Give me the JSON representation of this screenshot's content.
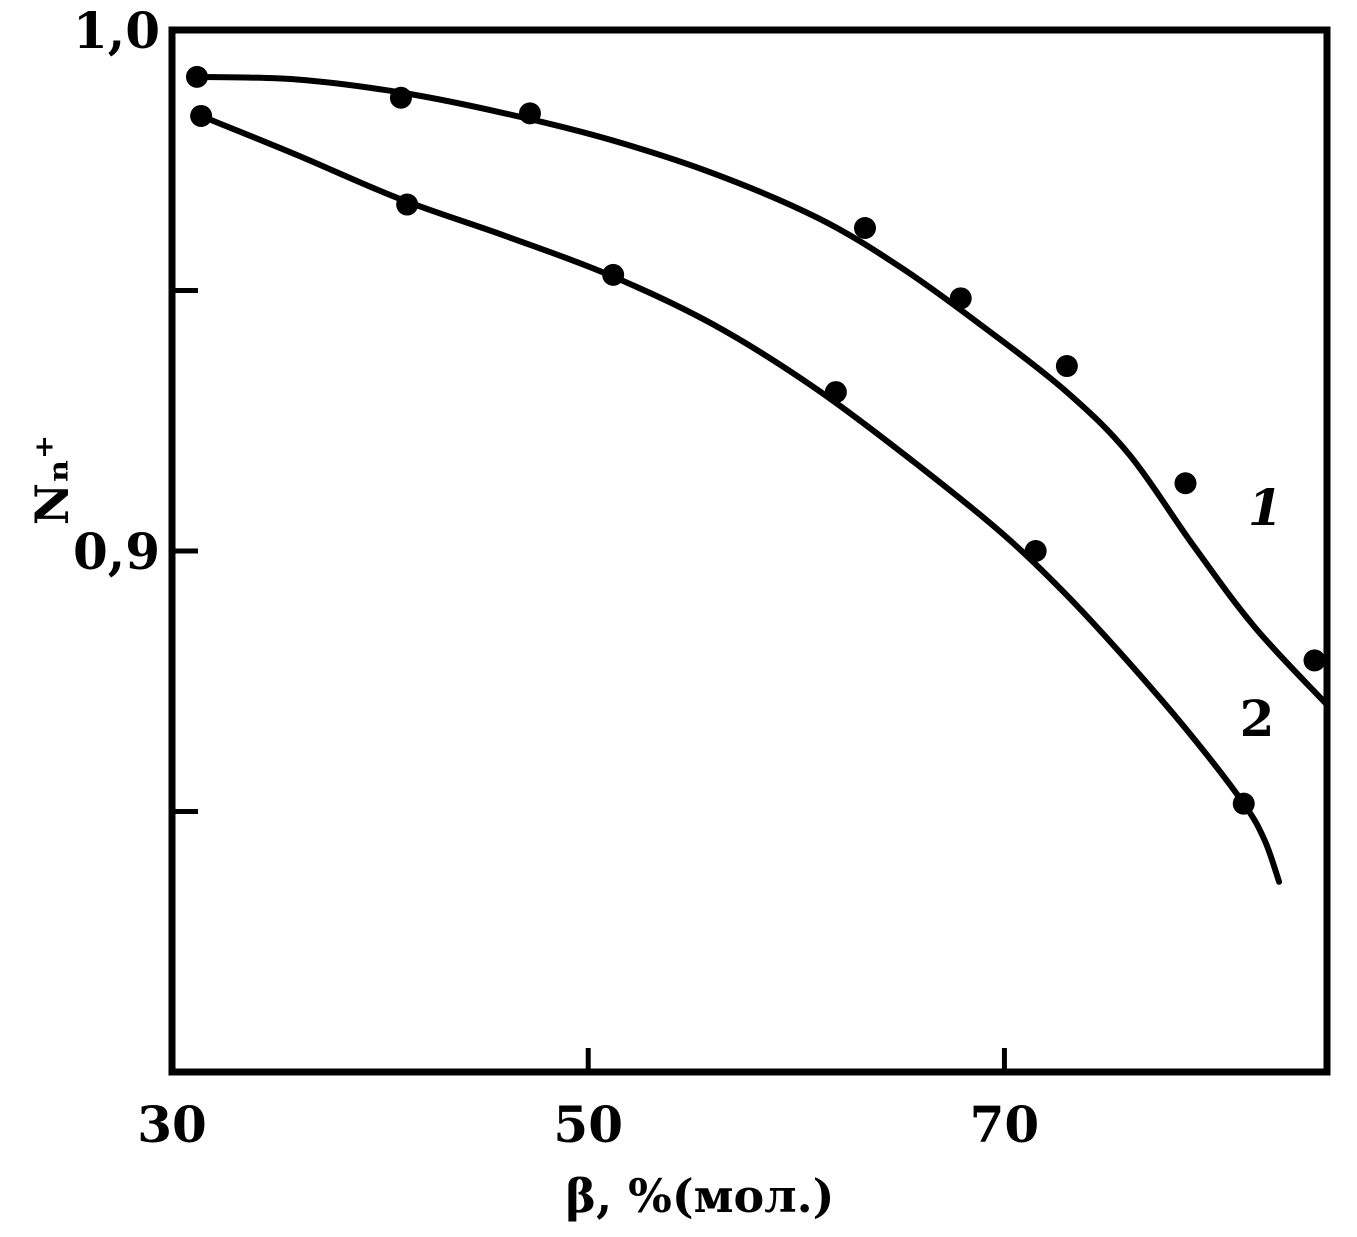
{
  "chart_data": {
    "type": "line",
    "title": "",
    "xlabel": "β, %(мол.)",
    "ylabel": "Nₙ⁺",
    "xlim": [
      30,
      85.5
    ],
    "ylim": [
      0.8,
      1.0
    ],
    "x_ticks": [
      {
        "value": 30,
        "label": "30"
      },
      {
        "value": 50,
        "label": "50"
      },
      {
        "value": 70,
        "label": "70"
      }
    ],
    "y_ticks": [
      {
        "value": 1.0,
        "label": "1,0"
      },
      {
        "value": 0.95,
        "label": ""
      },
      {
        "value": 0.9,
        "label": "0,9"
      },
      {
        "value": 0.85,
        "label": ""
      }
    ],
    "grid": false,
    "series": [
      {
        "name": "",
        "label": "1",
        "points": [
          [
            31.2,
            0.991
          ],
          [
            41.0,
            0.987
          ],
          [
            47.2,
            0.984
          ],
          [
            63.3,
            0.962
          ],
          [
            67.9,
            0.9485
          ],
          [
            73.0,
            0.9355
          ],
          [
            78.7,
            0.913
          ],
          [
            84.9,
            0.879
          ]
        ],
        "curve": [
          [
            31.2,
            0.991
          ],
          [
            36,
            0.9905
          ],
          [
            41,
            0.988
          ],
          [
            46,
            0.984
          ],
          [
            51,
            0.979
          ],
          [
            56,
            0.9725
          ],
          [
            61,
            0.964
          ],
          [
            65,
            0.9545
          ],
          [
            69,
            0.943
          ],
          [
            73,
            0.9305
          ],
          [
            76,
            0.9185
          ],
          [
            79,
            0.9015
          ],
          [
            82,
            0.8855
          ],
          [
            85.5,
            0.8705
          ]
        ],
        "label_pos": [
          81.7,
          0.905
        ]
      },
      {
        "name": "",
        "label": "2",
        "points": [
          [
            31.4,
            0.9835
          ],
          [
            41.3,
            0.9665
          ],
          [
            51.2,
            0.953
          ],
          [
            61.9,
            0.9305
          ],
          [
            71.5,
            0.9
          ],
          [
            81.5,
            0.8515
          ]
        ],
        "curve": [
          [
            31.4,
            0.9835
          ],
          [
            36,
            0.976
          ],
          [
            41,
            0.9675
          ],
          [
            46,
            0.9605
          ],
          [
            51,
            0.953
          ],
          [
            56,
            0.9435
          ],
          [
            61,
            0.931
          ],
          [
            66,
            0.916
          ],
          [
            70,
            0.903
          ],
          [
            73,
            0.8915
          ],
          [
            76,
            0.8785
          ],
          [
            79,
            0.8645
          ],
          [
            81.5,
            0.8515
          ],
          [
            82.5,
            0.8445
          ],
          [
            83.2,
            0.8365
          ]
        ],
        "label_pos": [
          81.3,
          0.8645
        ]
      }
    ]
  }
}
